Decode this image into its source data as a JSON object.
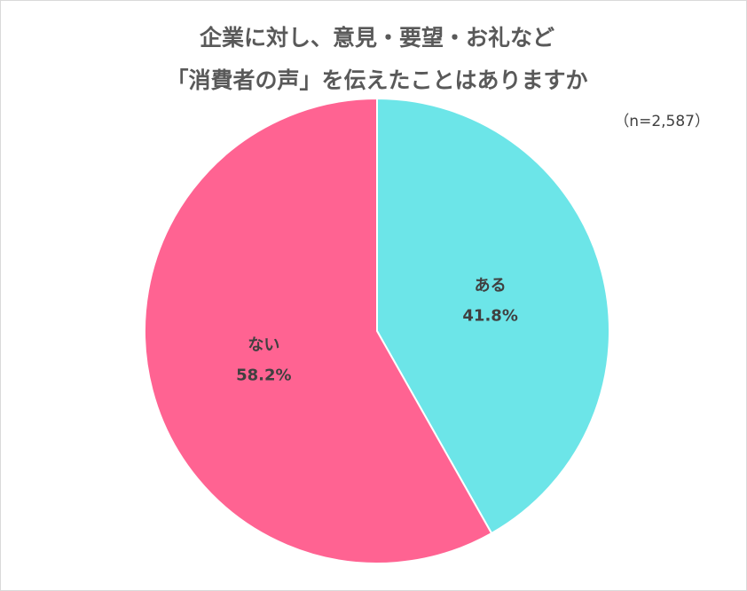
{
  "chart_data": {
    "type": "pie",
    "title": [
      "企業に対し、意見・要望・お礼など",
      "「消費者の声」を伝えたことはありますか"
    ],
    "subtitle": "（n=2,587）",
    "categories": [
      "ある",
      "ない"
    ],
    "values": [
      41.8,
      58.2
    ],
    "value_labels": [
      "41.8%",
      "58.2%"
    ],
    "colors": [
      "#6ce5e8",
      "#ff6392"
    ]
  }
}
